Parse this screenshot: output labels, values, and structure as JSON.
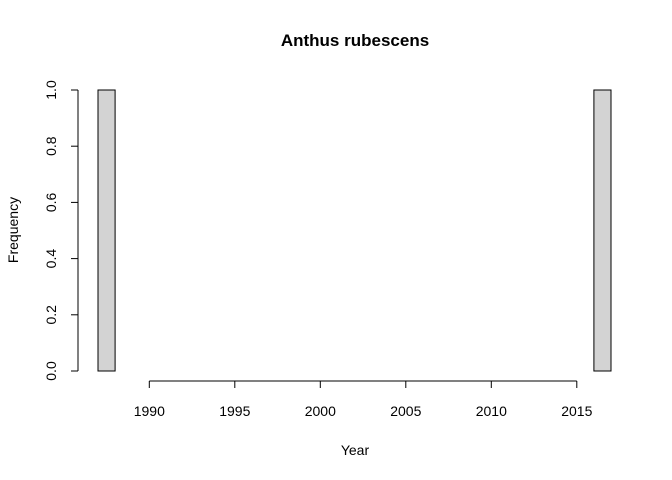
{
  "chart_data": {
    "type": "bar",
    "title": "Anthus rubescens",
    "xlabel": "Year",
    "ylabel": "Frequency",
    "bins": [
      {
        "start": 1987,
        "end": 1988,
        "value": 1
      },
      {
        "start": 1988,
        "end": 1989,
        "value": 0
      },
      {
        "start": 1989,
        "end": 1990,
        "value": 0
      },
      {
        "start": 1990,
        "end": 1991,
        "value": 0
      },
      {
        "start": 1991,
        "end": 1992,
        "value": 0
      },
      {
        "start": 1992,
        "end": 1993,
        "value": 0
      },
      {
        "start": 1993,
        "end": 1994,
        "value": 0
      },
      {
        "start": 1994,
        "end": 1995,
        "value": 0
      },
      {
        "start": 1995,
        "end": 1996,
        "value": 0
      },
      {
        "start": 1996,
        "end": 1997,
        "value": 0
      },
      {
        "start": 1997,
        "end": 1998,
        "value": 0
      },
      {
        "start": 1998,
        "end": 1999,
        "value": 0
      },
      {
        "start": 1999,
        "end": 2000,
        "value": 0
      },
      {
        "start": 2000,
        "end": 2001,
        "value": 0
      },
      {
        "start": 2001,
        "end": 2002,
        "value": 0
      },
      {
        "start": 2002,
        "end": 2003,
        "value": 0
      },
      {
        "start": 2003,
        "end": 2004,
        "value": 0
      },
      {
        "start": 2004,
        "end": 2005,
        "value": 0
      },
      {
        "start": 2005,
        "end": 2006,
        "value": 0
      },
      {
        "start": 2006,
        "end": 2007,
        "value": 0
      },
      {
        "start": 2007,
        "end": 2008,
        "value": 0
      },
      {
        "start": 2008,
        "end": 2009,
        "value": 0
      },
      {
        "start": 2009,
        "end": 2010,
        "value": 0
      },
      {
        "start": 2010,
        "end": 2011,
        "value": 0
      },
      {
        "start": 2011,
        "end": 2012,
        "value": 0
      },
      {
        "start": 2012,
        "end": 2013,
        "value": 0
      },
      {
        "start": 2013,
        "end": 2014,
        "value": 0
      },
      {
        "start": 2014,
        "end": 2015,
        "value": 0
      },
      {
        "start": 2015,
        "end": 2016,
        "value": 0
      },
      {
        "start": 2016,
        "end": 2017,
        "value": 1
      }
    ],
    "xticks": [
      1990,
      1995,
      2000,
      2005,
      2010,
      2015
    ],
    "xtick_labels": [
      "1990",
      "1995",
      "2000",
      "2005",
      "2010",
      "2015"
    ],
    "yticks": [
      0.0,
      0.2,
      0.4,
      0.6,
      0.8,
      1.0
    ],
    "ytick_labels": [
      "0.0",
      "0.2",
      "0.4",
      "0.6",
      "0.8",
      "1.0"
    ],
    "ylim": [
      0,
      1
    ],
    "grid": false,
    "bar_fill": "#d3d3d3",
    "bar_stroke": "#000000"
  }
}
